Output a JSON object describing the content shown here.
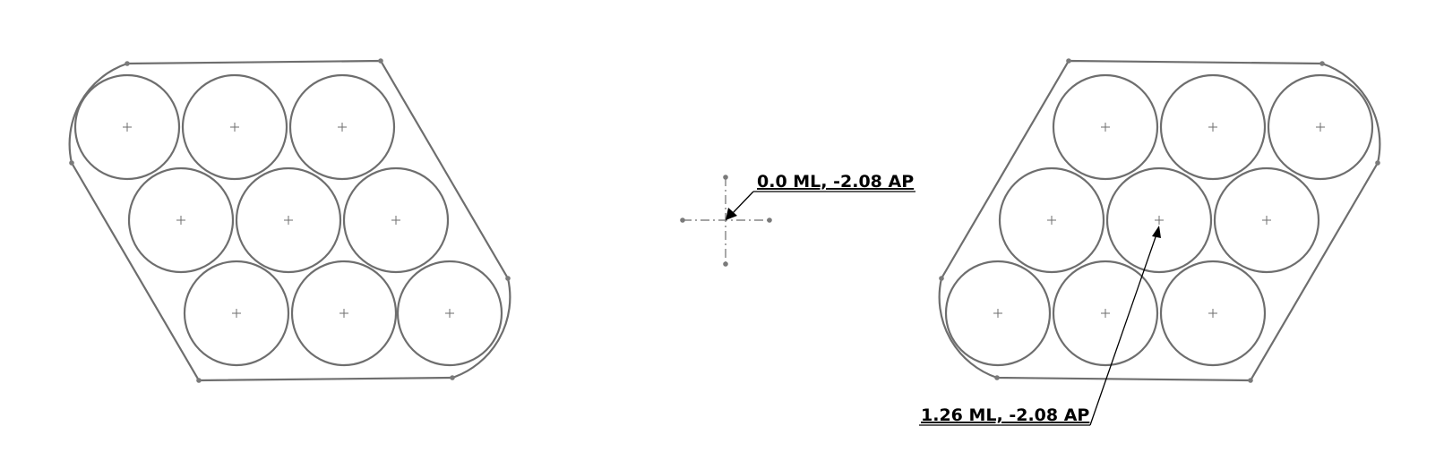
{
  "colors": {
    "line": "#6e6e6e",
    "point": "#7a7a7a",
    "text": "#000000"
  },
  "annotations": {
    "center_label": "0.0 ML, -2.08 AP",
    "right_label": "1.26 ML, -2.08 AP"
  }
}
